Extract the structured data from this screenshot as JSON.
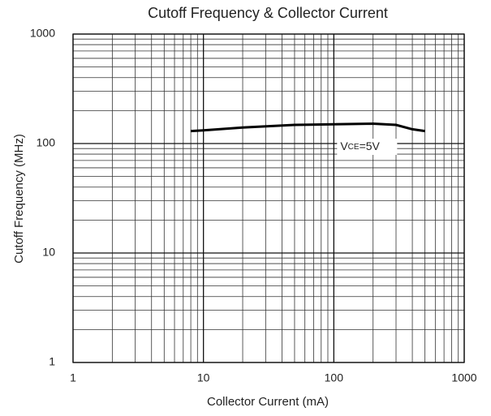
{
  "chart_data": {
    "type": "line",
    "title": "Cutoff Frequency & Collector Current",
    "xlabel": "Collector Current (mA)",
    "ylabel": "Cutoff Frequency (MHz)",
    "annotation": [
      "V",
      "CE",
      "=5V"
    ],
    "x": [
      8,
      10,
      20,
      50,
      100,
      200,
      300,
      400,
      500
    ],
    "series": [
      {
        "name": "VCE=5V",
        "color": "#000000",
        "values": [
          130,
          132,
          140,
          148,
          150,
          152,
          148,
          135,
          130
        ]
      }
    ],
    "xlim": [
      1,
      1000
    ],
    "xticks": [
      1,
      10,
      100,
      1000
    ],
    "ylim": [
      1,
      1000
    ],
    "yticks": [
      1,
      10,
      100,
      1000
    ],
    "xscale": "log",
    "yscale": "log",
    "grid": true
  }
}
